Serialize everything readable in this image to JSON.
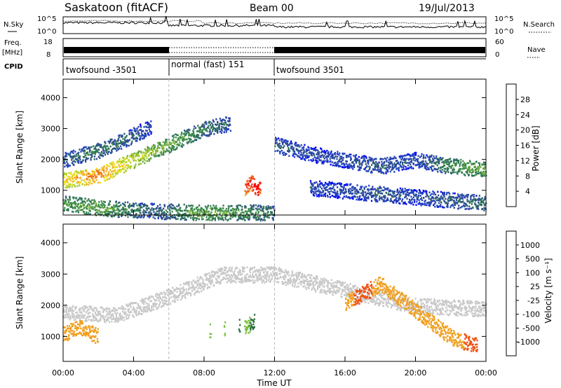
{
  "header": {
    "station": "Saskatoon (fitACF)",
    "beam": "Beam 00",
    "date": "19/Jul/2013"
  },
  "strips": {
    "nsky_label": "N.Sky",
    "nsky_ticks": [
      "10^5",
      "10^0"
    ],
    "nsearch_label": "N.Search",
    "nsearch_ticks": [
      "10^5",
      "10^0"
    ],
    "freq_label_line1": "Freq.",
    "freq_label_line2": "[MHz]",
    "freq_ticks": [
      "18",
      "8"
    ],
    "nave_label": "Nave",
    "nave_ticks": [
      "60",
      "0"
    ],
    "cpid_label": "CPID",
    "cpid_segments": [
      {
        "label": "twofsound -3501",
        "start_ut": "00:00",
        "end_ut": "06:00"
      },
      {
        "label": "normal (fast) 151",
        "start_ut": "06:00",
        "end_ut": "12:00"
      },
      {
        "label": "twofsound 3501",
        "start_ut": "12:00",
        "end_ut": "24:00"
      }
    ]
  },
  "colorbars": {
    "power": {
      "label": "Power [dB]",
      "ticks": [
        "28",
        "24",
        "20",
        "16",
        "12",
        "8",
        "4"
      ],
      "colors": [
        "#0000ff",
        "#2040c0",
        "#2c4a9a",
        "#2e6f5a",
        "#3a8a4a",
        "#6fae3a",
        "#a8cc30",
        "#e8e020",
        "#f5b020",
        "#f07018",
        "#e83018",
        "#ff0000"
      ]
    },
    "velocity": {
      "label": "Velocity [m s⁻¹]",
      "ticks": [
        "1000",
        "500",
        "100",
        "25",
        "-25",
        "-100",
        "-500",
        "-1000"
      ],
      "colors": [
        "#2040c0",
        "#2c5aa0",
        "#2e7040",
        "#3a8a3a",
        "#7ac040",
        "#c8c8c8",
        "#c8c8c8",
        "#f0a020",
        "#f07010",
        "#f05010",
        "#ff0000"
      ]
    }
  },
  "chart_data": [
    {
      "type": "heatmap",
      "parameter": "Power",
      "ylabel": "Slant Range [km]",
      "yticks": [
        "4000",
        "3000",
        "2000",
        "1000"
      ],
      "ylim": [
        200,
        4600
      ],
      "xlim_hours": [
        0,
        24
      ],
      "colorbar_range_db": [
        0,
        30
      ],
      "features": [
        {
          "name": "main band",
          "points": [
            [
              0,
              1350,
              20
            ],
            [
              2,
              1500,
              24
            ],
            [
              4,
              2000,
              18
            ],
            [
              6,
              2500,
              14
            ],
            [
              8,
              3000,
              10
            ],
            [
              9.5,
              3200,
              8
            ]
          ]
        },
        {
          "name": "upper band early",
          "points": [
            [
              0,
              2000,
              8
            ],
            [
              2,
              2300,
              10
            ],
            [
              4,
              2800,
              8
            ],
            [
              5,
              3100,
              6
            ]
          ]
        },
        {
          "name": "near range",
          "points": [
            [
              0,
              600,
              12
            ],
            [
              2,
              450,
              14
            ],
            [
              5,
              350,
              8
            ],
            [
              8,
              300,
              14
            ],
            [
              12,
              300,
              10
            ]
          ]
        },
        {
          "name": "burst 10-11 UT",
          "points": [
            [
              10.3,
              1100,
              26
            ],
            [
              10.6,
              1300,
              28
            ],
            [
              11.0,
              1050,
              30
            ],
            [
              11.2,
              1200,
              28
            ]
          ]
        },
        {
          "name": "late band",
          "points": [
            [
              12,
              2500,
              8
            ],
            [
              14,
              2200,
              6
            ],
            [
              16,
              2000,
              6
            ],
            [
              18,
              1800,
              8
            ],
            [
              20,
              2000,
              6
            ],
            [
              22,
              1800,
              12
            ],
            [
              24,
              1700,
              14
            ]
          ]
        },
        {
          "name": "late low band",
          "points": [
            [
              14,
              1100,
              6
            ],
            [
              16,
              1000,
              6
            ],
            [
              18,
              900,
              8
            ],
            [
              20,
              800,
              6
            ],
            [
              22,
              700,
              8
            ],
            [
              24,
              600,
              10
            ]
          ]
        }
      ]
    },
    {
      "type": "heatmap",
      "parameter": "Velocity",
      "ylabel": "Slant Range [km]",
      "yticks": [
        "4000",
        "3000",
        "2000",
        "1000"
      ],
      "ylim": [
        200,
        4600
      ],
      "xlim_hours": [
        0,
        24
      ],
      "xticks": [
        "00:00",
        "04:00",
        "08:00",
        "12:00",
        "16:00",
        "20:00",
        "00:00"
      ],
      "xlabel": "Time UT",
      "features": [
        {
          "name": "ground scatter band",
          "points": [
            [
              0,
              1800,
              0
            ],
            [
              3,
              1700,
              0
            ],
            [
              6,
              2300,
              0
            ],
            [
              9,
              3000,
              0
            ],
            [
              12,
              3000,
              0
            ],
            [
              16,
              2500,
              0
            ],
            [
              20,
              2000,
              0
            ],
            [
              24,
              1900,
              0
            ]
          ]
        },
        {
          "name": "negative early",
          "points": [
            [
              0,
              1100,
              -200
            ],
            [
              1,
              1300,
              -300
            ],
            [
              2,
              1000,
              -150
            ]
          ]
        },
        {
          "name": "positive burst",
          "points": [
            [
              10.3,
              1300,
              200
            ],
            [
              10.8,
              1500,
              300
            ],
            [
              7.5,
              1100,
              150
            ]
          ]
        },
        {
          "name": "negative late",
          "points": [
            [
              16,
              2100,
              -300
            ],
            [
              17,
              2400,
              -400
            ],
            [
              18,
              2700,
              -300
            ],
            [
              22,
              1000,
              -200
            ],
            [
              23.5,
              700,
              -500
            ]
          ]
        }
      ]
    }
  ]
}
